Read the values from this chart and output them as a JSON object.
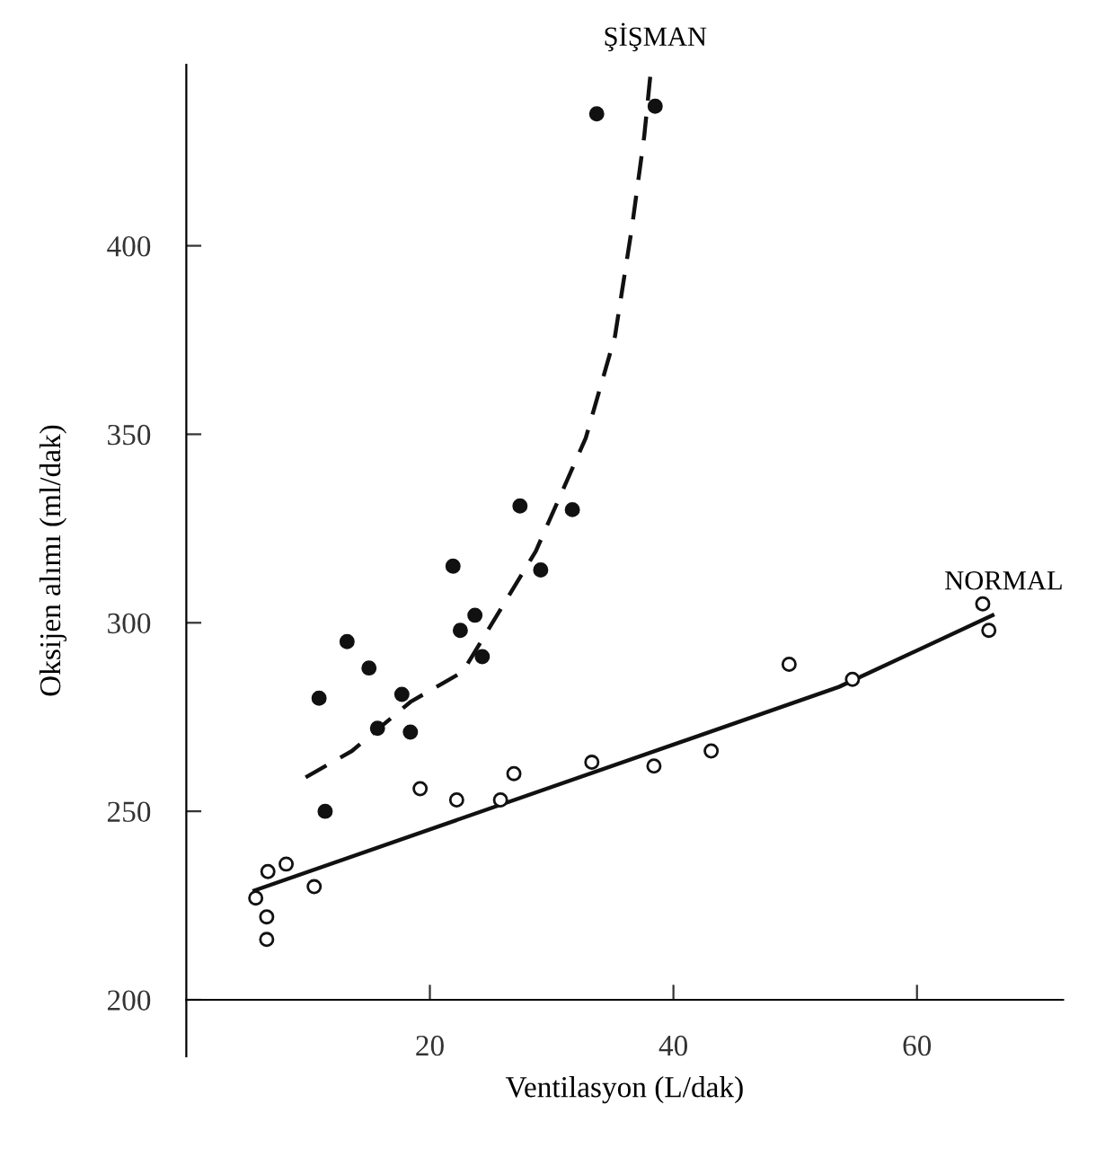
{
  "chart_data": {
    "type": "scatter",
    "xlabel": "Ventilasyon (L/dak)",
    "ylabel": "Oksijen alımı (ml/dak)",
    "xlim": [
      0,
      72
    ],
    "ylim": [
      185,
      448
    ],
    "xticks": [
      20,
      40,
      60
    ],
    "yticks": [
      200,
      250,
      300,
      350,
      400
    ],
    "grid": false,
    "series": [
      {
        "name": "ŞİŞMAN",
        "marker": "circle",
        "color": "#111111",
        "x": [
          21.9,
          29.1,
          23.7,
          22.5,
          24.3,
          13.2,
          15.0,
          10.9,
          17.7,
          15.7,
          18.4,
          11.4,
          33.7,
          38.5,
          27.4,
          31.7
        ],
        "values": [
          315,
          314,
          302,
          298,
          291,
          295,
          288,
          280,
          281,
          272,
          271,
          250,
          435,
          437,
          331,
          330
        ]
      },
      {
        "type": "line",
        "line_style": "dashed",
        "marker": "none",
        "color": "#111111",
        "x": [
          9.8,
          13.6,
          18.4,
          22.7,
          28.7,
          32.8,
          35.2,
          36.6,
          37.6,
          38.1
        ],
        "values": [
          259,
          266,
          279,
          287,
          319,
          349,
          376,
          405,
          429,
          445
        ]
      },
      {
        "name": "NORMAL",
        "marker": "circle",
        "color": "#ffffff",
        "x": [
          5.7,
          6.6,
          6.6,
          6.7,
          8.2,
          10.5,
          19.2,
          22.2,
          25.8,
          26.9,
          33.3,
          38.4,
          43.1,
          49.5,
          54.7,
          65.4,
          65.9
        ],
        "values": [
          227,
          222,
          216,
          234,
          236,
          230,
          256,
          253,
          253,
          260,
          263,
          262,
          266,
          289,
          285,
          305,
          298
        ]
      },
      {
        "type": "line",
        "line_style": "solid",
        "marker": "none",
        "color": "#111111",
        "x": [
          5.6,
          53.6,
          66.2
        ],
        "values": [
          229,
          283,
          302
        ]
      }
    ]
  }
}
